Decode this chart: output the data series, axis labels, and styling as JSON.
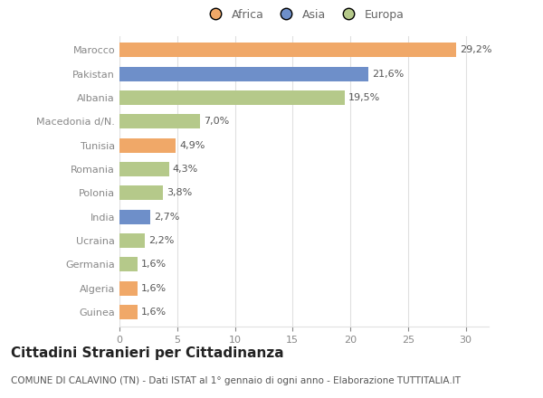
{
  "categories": [
    "Marocco",
    "Pakistan",
    "Albania",
    "Macedonia d/N.",
    "Tunisia",
    "Romania",
    "Polonia",
    "India",
    "Ucraina",
    "Germania",
    "Algeria",
    "Guinea"
  ],
  "values": [
    29.2,
    21.6,
    19.5,
    7.0,
    4.9,
    4.3,
    3.8,
    2.7,
    2.2,
    1.6,
    1.6,
    1.6
  ],
  "labels": [
    "29,2%",
    "21,6%",
    "19,5%",
    "7,0%",
    "4,9%",
    "4,3%",
    "3,8%",
    "2,7%",
    "2,2%",
    "1,6%",
    "1,6%",
    "1,6%"
  ],
  "colors": [
    "#f0a868",
    "#6e8fc9",
    "#b5c98a",
    "#b5c98a",
    "#f0a868",
    "#b5c98a",
    "#b5c98a",
    "#6e8fc9",
    "#b5c98a",
    "#b5c98a",
    "#f0a868",
    "#f0a868"
  ],
  "legend_labels": [
    "Africa",
    "Asia",
    "Europa"
  ],
  "legend_colors": [
    "#f0a868",
    "#6e8fc9",
    "#b5c98a"
  ],
  "title": "Cittadini Stranieri per Cittadinanza",
  "subtitle": "COMUNE DI CALAVINO (TN) - Dati ISTAT al 1° gennaio di ogni anno - Elaborazione TUTTITALIA.IT",
  "xlim": [
    0,
    32
  ],
  "xticks": [
    0,
    5,
    10,
    15,
    20,
    25,
    30
  ],
  "background_color": "#ffffff",
  "grid_color": "#e0e0e0",
  "bar_height": 0.6,
  "title_fontsize": 11,
  "subtitle_fontsize": 7.5,
  "tick_fontsize": 8,
  "label_fontsize": 8
}
